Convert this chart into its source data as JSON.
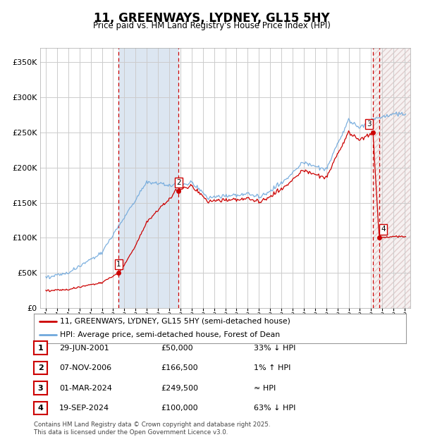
{
  "title": "11, GREENWAYS, LYDNEY, GL15 5HY",
  "subtitle": "Price paid vs. HM Land Registry's House Price Index (HPI)",
  "legend_entries": [
    "11, GREENWAYS, LYDNEY, GL15 5HY (semi-detached house)",
    "HPI: Average price, semi-detached house, Forest of Dean"
  ],
  "transactions": [
    {
      "num": 1,
      "date": "29-JUN-2001",
      "price": 50000,
      "rel": "33% ↓ HPI",
      "x": 2001.49
    },
    {
      "num": 2,
      "date": "07-NOV-2006",
      "price": 166500,
      "rel": "1% ↑ HPI",
      "x": 2006.85
    },
    {
      "num": 3,
      "date": "01-MAR-2024",
      "price": 249500,
      "rel": "≈ HPI",
      "x": 2024.17
    },
    {
      "num": 4,
      "date": "19-SEP-2024",
      "price": 100000,
      "rel": "63% ↓ HPI",
      "x": 2024.72
    }
  ],
  "footer": "Contains HM Land Registry data © Crown copyright and database right 2025.\nThis data is licensed under the Open Government Licence v3.0.",
  "hpi_color": "#6fa8dc",
  "price_color": "#cc0000",
  "background_color": "#ffffff",
  "plot_bg_color": "#ffffff",
  "grid_color": "#cccccc",
  "vline_color": "#cc0000",
  "shade1_color": "#dce6f1",
  "ylim": [
    0,
    370000
  ],
  "xlim": [
    1994.5,
    2027.5
  ],
  "yticks": [
    0,
    50000,
    100000,
    150000,
    200000,
    250000,
    300000,
    350000
  ],
  "ytick_labels": [
    "£0",
    "£50K",
    "£100K",
    "£150K",
    "£200K",
    "£250K",
    "£300K",
    "£350K"
  ]
}
